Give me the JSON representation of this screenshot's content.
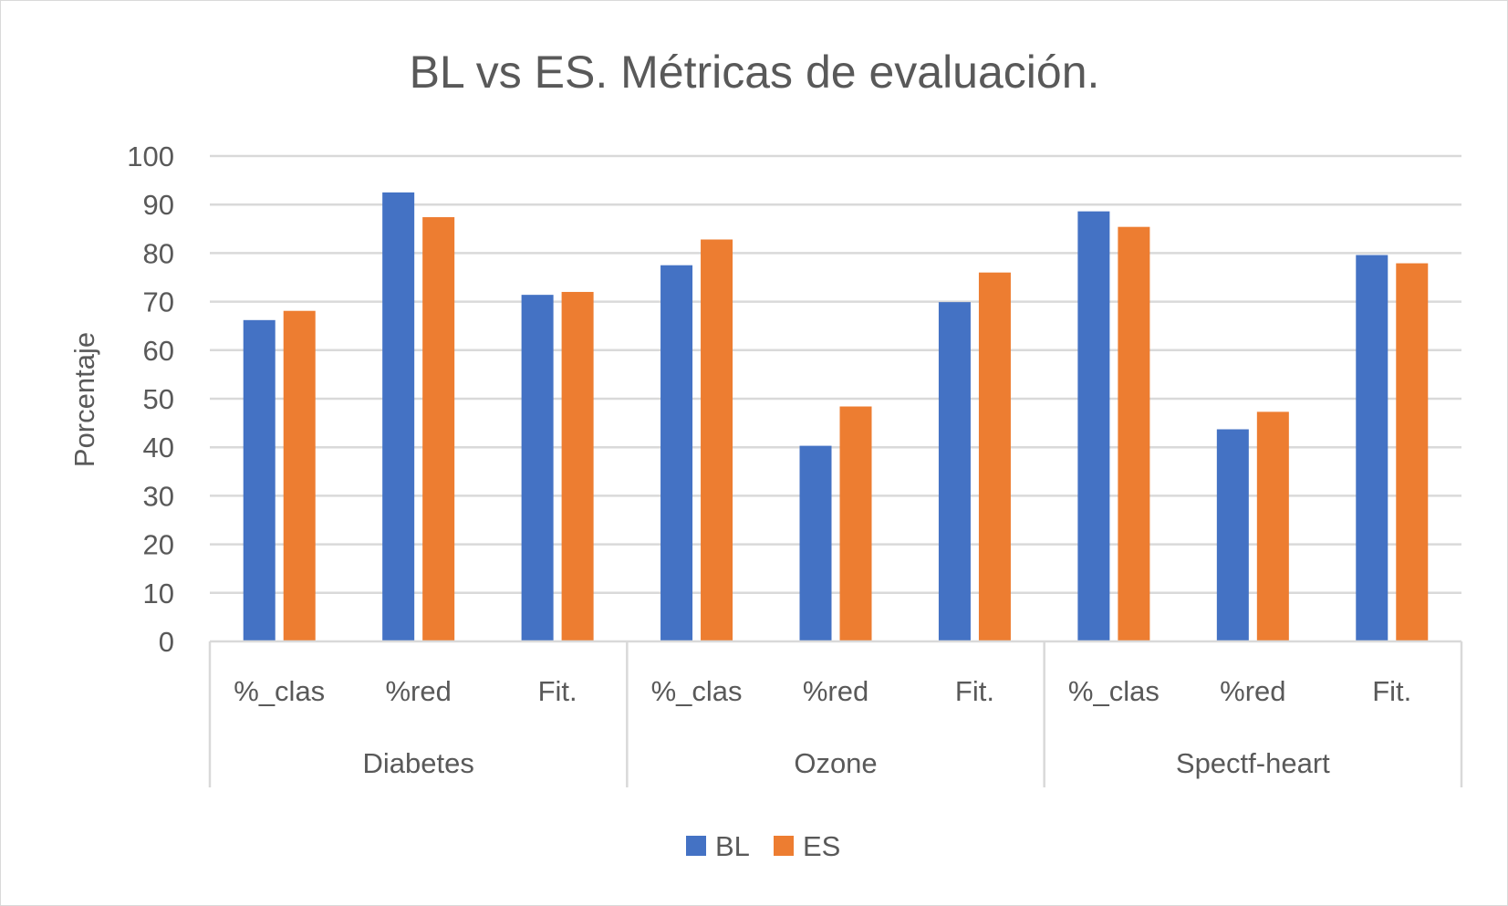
{
  "chart_data": {
    "type": "bar",
    "title": "BL vs ES. Métricas de evaluación.",
    "xlabel": "",
    "ylabel": "Porcentaje",
    "ylim": [
      0,
      100
    ],
    "yticks": [
      "0",
      "10",
      "20",
      "30",
      "40",
      "50",
      "60",
      "70",
      "80",
      "90",
      "100"
    ],
    "grid": true,
    "legend_position": "bottom",
    "groups": [
      "Diabetes",
      "Ozone",
      "Spectf-heart"
    ],
    "categories": [
      "%_clas",
      "%red",
      "Fit.",
      "%_clas",
      "%red",
      "Fit.",
      "%_clas",
      "%red",
      "Fit."
    ],
    "series": [
      {
        "name": "BL",
        "color": "#4472c4",
        "values": [
          66.2,
          92.5,
          71.4,
          77.5,
          40.3,
          69.9,
          88.6,
          43.7,
          79.6
        ]
      },
      {
        "name": "ES",
        "color": "#ed7d31",
        "values": [
          68.1,
          87.4,
          72.0,
          82.8,
          48.4,
          76.0,
          85.4,
          47.3,
          77.9
        ]
      }
    ]
  }
}
